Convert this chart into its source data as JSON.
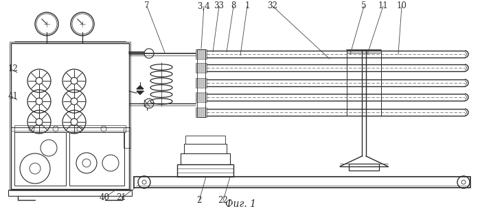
{
  "bg_color": "#ffffff",
  "line_color": "#2a2a2a",
  "fig_caption": "Фиг. 1",
  "label_fontsize": 8.5,
  "caption_fontsize": 10
}
